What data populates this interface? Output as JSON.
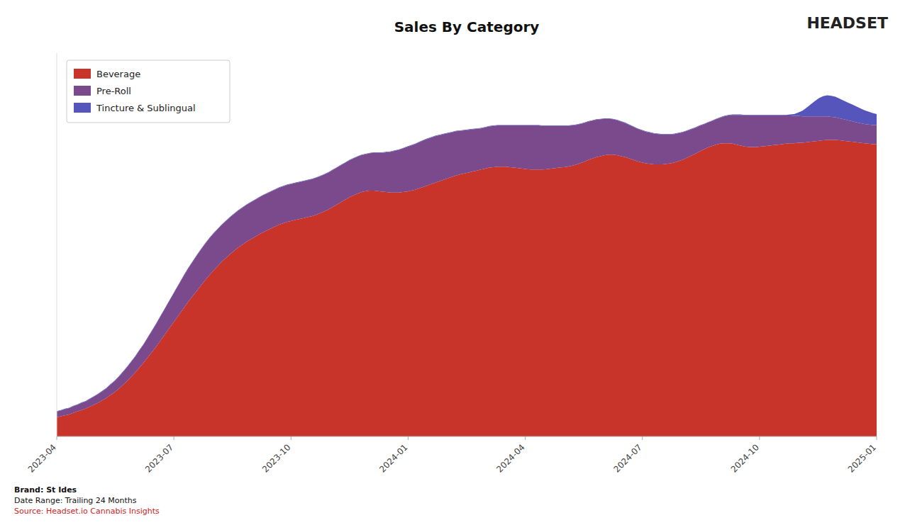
{
  "chart_data": {
    "type": "area",
    "stacked": true,
    "title": "Sales By Category",
    "annotations": [
      "Brand: St Ides",
      "Date Range: Trailing 24 Months",
      "Source: Headset.io Cannabis Insights",
      "HEADSET"
    ],
    "legend": "upper left",
    "grid": false,
    "tick_labels": "x",
    "xlim": [
      0,
      199
    ],
    "xticks": [
      {
        "value": 0,
        "label": "2023-04"
      },
      {
        "value": 28.428571428571427,
        "label": "2023-07"
      },
      {
        "value": 56.857142857142854,
        "label": "2023-10"
      },
      {
        "value": 85.28571428571429,
        "label": "2024-01"
      },
      {
        "value": 113.71428571428571,
        "label": "2024-04"
      },
      {
        "value": 142.14285714285714,
        "label": "2024-07"
      },
      {
        "value": 170.57142857142858,
        "label": "2024-10"
      },
      {
        "value": 199,
        "label": "2025-01"
      }
    ],
    "ylim": [
      0,
      0.8
    ],
    "x": [
      0,
      1,
      2,
      3,
      4,
      5,
      6,
      7,
      8,
      9,
      10,
      11,
      12,
      13,
      14,
      15,
      16,
      17,
      18,
      19,
      20,
      21,
      22,
      23,
      24,
      25,
      26,
      27,
      28,
      29,
      30,
      31,
      32,
      33,
      34,
      35,
      36,
      37,
      38,
      39,
      40,
      41,
      42,
      43,
      44,
      45,
      46,
      47,
      48,
      49,
      50,
      51,
      52,
      53,
      54,
      55,
      56,
      57,
      58,
      59,
      60,
      61,
      62,
      63,
      64,
      65,
      66,
      67,
      68,
      69,
      70,
      71,
      72,
      73,
      74,
      75,
      76,
      77,
      78,
      79,
      80,
      81,
      82,
      83,
      84,
      85,
      86,
      87,
      88,
      89,
      90,
      91,
      92,
      93,
      94,
      95,
      96,
      97,
      98,
      99,
      100,
      101,
      102,
      103,
      104,
      105,
      106,
      107,
      108,
      109,
      110,
      111,
      112,
      113,
      114,
      115,
      116,
      117,
      118,
      119,
      120,
      121,
      122,
      123,
      124,
      125,
      126,
      127,
      128,
      129,
      130,
      131,
      132,
      133,
      134,
      135,
      136,
      137,
      138,
      139,
      140,
      141,
      142,
      143,
      144,
      145,
      146,
      147,
      148,
      149,
      150,
      151,
      152,
      153,
      154,
      155,
      156,
      157,
      158,
      159,
      160,
      161,
      162,
      163,
      164,
      165,
      166,
      167,
      168,
      169,
      170,
      171,
      172,
      173,
      174,
      175,
      176,
      177,
      178,
      179,
      180,
      181,
      182,
      183,
      184,
      185,
      186,
      187,
      188,
      189,
      190,
      191,
      192,
      193,
      194,
      195,
      196,
      197,
      198,
      199
    ],
    "series": [
      {
        "name": "Beverage",
        "color": "#c8342a",
        "values": [
          0.04,
          0.042,
          0.044,
          0.046,
          0.049,
          0.052,
          0.055,
          0.058,
          0.062,
          0.066,
          0.07,
          0.075,
          0.08,
          0.086,
          0.092,
          0.099,
          0.107,
          0.115,
          0.124,
          0.133,
          0.143,
          0.153,
          0.164,
          0.175,
          0.186,
          0.198,
          0.21,
          0.222,
          0.234,
          0.246,
          0.258,
          0.27,
          0.282,
          0.293,
          0.304,
          0.315,
          0.326,
          0.336,
          0.346,
          0.355,
          0.364,
          0.372,
          0.38,
          0.387,
          0.394,
          0.4,
          0.406,
          0.411,
          0.416,
          0.421,
          0.426,
          0.43,
          0.434,
          0.438,
          0.442,
          0.445,
          0.448,
          0.45,
          0.452,
          0.454,
          0.456,
          0.458,
          0.46,
          0.463,
          0.466,
          0.47,
          0.474,
          0.479,
          0.484,
          0.489,
          0.494,
          0.499,
          0.503,
          0.507,
          0.51,
          0.512,
          0.513,
          0.513,
          0.512,
          0.511,
          0.51,
          0.509,
          0.509,
          0.509,
          0.51,
          0.511,
          0.513,
          0.515,
          0.518,
          0.521,
          0.524,
          0.527,
          0.53,
          0.533,
          0.536,
          0.539,
          0.542,
          0.545,
          0.547,
          0.549,
          0.551,
          0.553,
          0.555,
          0.557,
          0.559,
          0.561,
          0.562,
          0.563,
          0.563,
          0.563,
          0.562,
          0.561,
          0.56,
          0.559,
          0.558,
          0.557,
          0.557,
          0.557,
          0.557,
          0.558,
          0.559,
          0.56,
          0.561,
          0.562,
          0.563,
          0.565,
          0.567,
          0.57,
          0.573,
          0.577,
          0.58,
          0.583,
          0.585,
          0.587,
          0.588,
          0.588,
          0.587,
          0.585,
          0.583,
          0.58,
          0.577,
          0.574,
          0.572,
          0.57,
          0.569,
          0.568,
          0.568,
          0.568,
          0.569,
          0.57,
          0.572,
          0.575,
          0.578,
          0.582,
          0.586,
          0.59,
          0.595,
          0.599,
          0.603,
          0.606,
          0.609,
          0.611,
          0.612,
          0.612,
          0.611,
          0.609,
          0.607,
          0.605,
          0.604,
          0.604,
          0.604,
          0.605,
          0.606,
          0.607,
          0.608,
          0.609,
          0.61,
          0.611,
          0.612,
          0.612,
          0.613,
          0.613,
          0.614,
          0.615,
          0.616,
          0.617,
          0.618,
          0.619,
          0.619,
          0.619,
          0.618,
          0.617,
          0.616,
          0.615,
          0.614,
          0.613,
          0.612,
          0.611,
          0.61,
          0.61
        ]
      },
      {
        "name": "Pre-Roll",
        "color": "#7b4a8c",
        "values": [
          0.012,
          0.012,
          0.013,
          0.013,
          0.014,
          0.014,
          0.015,
          0.015,
          0.016,
          0.017,
          0.018,
          0.019,
          0.02,
          0.022,
          0.023,
          0.025,
          0.027,
          0.029,
          0.031,
          0.033,
          0.036,
          0.038,
          0.041,
          0.044,
          0.047,
          0.05,
          0.053,
          0.056,
          0.059,
          0.062,
          0.065,
          0.068,
          0.07,
          0.072,
          0.074,
          0.075,
          0.076,
          0.077,
          0.077,
          0.077,
          0.077,
          0.077,
          0.077,
          0.077,
          0.077,
          0.077,
          0.077,
          0.077,
          0.077,
          0.077,
          0.077,
          0.077,
          0.077,
          0.077,
          0.077,
          0.077,
          0.077,
          0.077,
          0.077,
          0.077,
          0.077,
          0.077,
          0.077,
          0.077,
          0.077,
          0.077,
          0.077,
          0.077,
          0.077,
          0.077,
          0.077,
          0.077,
          0.077,
          0.077,
          0.077,
          0.077,
          0.078,
          0.079,
          0.08,
          0.081,
          0.083,
          0.085,
          0.087,
          0.089,
          0.091,
          0.093,
          0.094,
          0.095,
          0.096,
          0.097,
          0.097,
          0.097,
          0.097,
          0.096,
          0.095,
          0.094,
          0.093,
          0.092,
          0.091,
          0.09,
          0.089,
          0.088,
          0.087,
          0.086,
          0.086,
          0.086,
          0.086,
          0.086,
          0.086,
          0.086,
          0.087,
          0.088,
          0.089,
          0.09,
          0.091,
          0.092,
          0.092,
          0.092,
          0.091,
          0.09,
          0.089,
          0.088,
          0.087,
          0.086,
          0.085,
          0.084,
          0.083,
          0.082,
          0.081,
          0.08,
          0.079,
          0.078,
          0.077,
          0.076,
          0.075,
          0.074,
          0.073,
          0.072,
          0.071,
          0.07,
          0.069,
          0.068,
          0.067,
          0.066,
          0.065,
          0.064,
          0.063,
          0.062,
          0.061,
          0.06,
          0.059,
          0.058,
          0.057,
          0.056,
          0.055,
          0.054,
          0.053,
          0.052,
          0.052,
          0.052,
          0.053,
          0.054,
          0.056,
          0.058,
          0.06,
          0.062,
          0.064,
          0.065,
          0.066,
          0.066,
          0.066,
          0.065,
          0.064,
          0.063,
          0.062,
          0.061,
          0.06,
          0.059,
          0.058,
          0.057,
          0.056,
          0.055,
          0.054,
          0.053,
          0.052,
          0.051,
          0.05,
          0.049,
          0.048,
          0.047,
          0.046,
          0.045,
          0.044,
          0.043,
          0.042,
          0.041,
          0.04,
          0.04,
          0.04,
          0.04
        ]
      },
      {
        "name": "Tincture & Sublingual",
        "color": "#5555bb",
        "values": [
          0.001,
          0.001,
          0.001,
          0.001,
          0.001,
          0.001,
          0.001,
          0.001,
          0.001,
          0.001,
          0.001,
          0.001,
          0.001,
          0.001,
          0.001,
          0.001,
          0.001,
          0.001,
          0.001,
          0.001,
          0.001,
          0.001,
          0.001,
          0.001,
          0.001,
          0.001,
          0.001,
          0.001,
          0.001,
          0.001,
          0.001,
          0.001,
          0.001,
          0.001,
          0.001,
          0.001,
          0.001,
          0.001,
          0.001,
          0.001,
          0.001,
          0.001,
          0.001,
          0.001,
          0.001,
          0.001,
          0.001,
          0.001,
          0.001,
          0.001,
          0.001,
          0.001,
          0.001,
          0.001,
          0.001,
          0.001,
          0.001,
          0.001,
          0.001,
          0.001,
          0.001,
          0.001,
          0.001,
          0.001,
          0.001,
          0.001,
          0.001,
          0.001,
          0.001,
          0.001,
          0.001,
          0.001,
          0.001,
          0.001,
          0.001,
          0.001,
          0.001,
          0.001,
          0.001,
          0.001,
          0.001,
          0.001,
          0.001,
          0.001,
          0.001,
          0.001,
          0.001,
          0.001,
          0.001,
          0.001,
          0.001,
          0.001,
          0.001,
          0.001,
          0.001,
          0.001,
          0.001,
          0.001,
          0.001,
          0.001,
          0.001,
          0.001,
          0.001,
          0.001,
          0.001,
          0.001,
          0.001,
          0.001,
          0.001,
          0.001,
          0.001,
          0.001,
          0.001,
          0.001,
          0.001,
          0.001,
          0.001,
          0.001,
          0.001,
          0.001,
          0.001,
          0.001,
          0.001,
          0.001,
          0.001,
          0.001,
          0.001,
          0.001,
          0.001,
          0.001,
          0.001,
          0.001,
          0.001,
          0.001,
          0.001,
          0.001,
          0.001,
          0.001,
          0.001,
          0.001,
          0.001,
          0.001,
          0.001,
          0.001,
          0.001,
          0.001,
          0.001,
          0.001,
          0.001,
          0.001,
          0.001,
          0.001,
          0.001,
          0.001,
          0.001,
          0.001,
          0.001,
          0.001,
          0.001,
          0.001,
          0.001,
          0.001,
          0.001,
          0.001,
          0.001,
          0.001,
          0.001,
          0.001,
          0.001,
          0.001,
          0.001,
          0.001,
          0.001,
          0.001,
          0.001,
          0.001,
          0.001,
          0.001,
          0.002,
          0.004,
          0.007,
          0.012,
          0.018,
          0.025,
          0.032,
          0.038,
          0.042,
          0.044,
          0.044,
          0.043,
          0.041,
          0.039,
          0.037,
          0.035,
          0.033,
          0.031,
          0.029,
          0.027,
          0.025,
          0.023
        ]
      }
    ]
  }
}
